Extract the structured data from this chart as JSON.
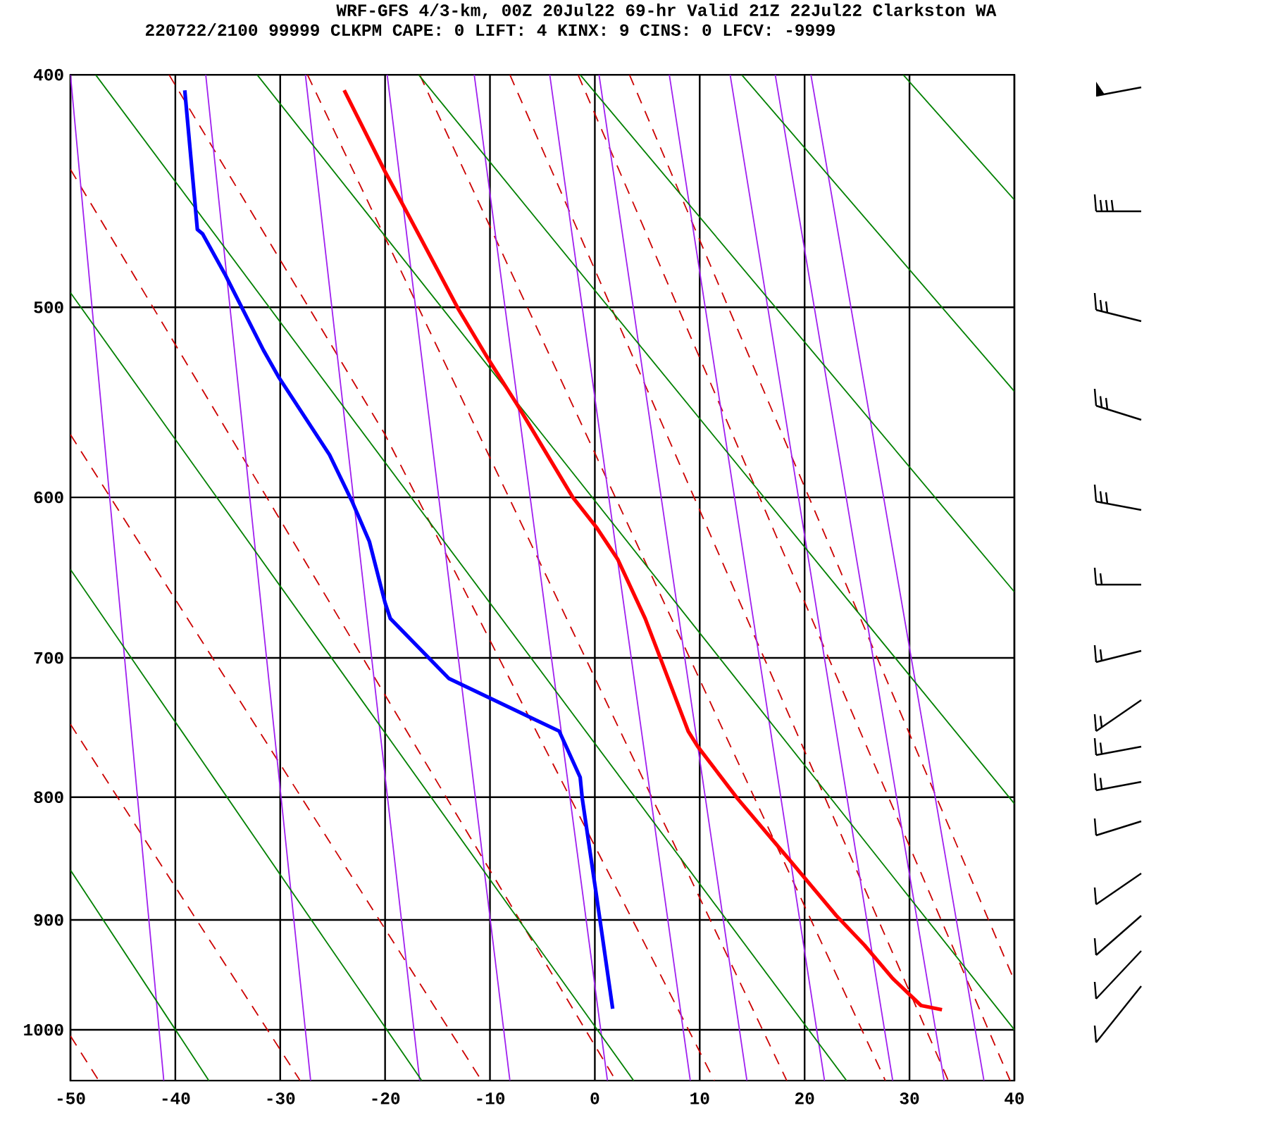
{
  "chart_data": {
    "type": "line",
    "title": "WRF-GFS 4/3-km, 00Z 20Jul22 69-hr Valid 21Z 22Jul22 Clarkston WA",
    "subtitle": "220722/2100 99999  CLKPM   CAPE:     0 LIFT:     4 KINX:     9 CINS:     0 LFCV: -9999",
    "xlim": [
      -50,
      40
    ],
    "xticks": [
      -50,
      -40,
      -30,
      -20,
      -10,
      0,
      10,
      20,
      30,
      40
    ],
    "ylim": [
      1050,
      400
    ],
    "yticks": [
      400,
      500,
      600,
      700,
      800,
      900,
      1000
    ],
    "grid": true,
    "log": "y",
    "series": [
      {
        "color": "#ff0000",
        "x": [
          -23.9,
          -20.0,
          -18.2,
          -13.0,
          -10.1,
          -7.4,
          -2.1,
          0.2,
          2.2,
          4.8,
          6.4,
          8.9,
          9.8,
          13.6,
          18.5,
          23.0,
          25.7,
          28.4,
          31.1,
          33.1
        ],
        "values": [
          406,
          439,
          454,
          501,
          526,
          549,
          600,
          618,
          637,
          674,
          703,
          751,
          762,
          801,
          849,
          896,
          922,
          952,
          977,
          981
        ]
      },
      {
        "color": "#0000ff",
        "x": [
          -39.1,
          -37.9,
          -37.4,
          -35.2,
          -31.6,
          -30.1,
          -25.3,
          -23.1,
          -21.5,
          -20.0,
          -19.5,
          -13.9,
          -3.4,
          -1.4,
          -1.2,
          0.0,
          0.6,
          1.7
        ],
        "values": [
          406,
          464,
          466,
          485,
          521,
          535,
          576,
          603,
          626,
          664,
          674,
          714,
          751,
          785,
          801,
          870,
          907,
          980
        ]
      },
      {
        "color": "#008000",
        "x": [
          -50,
          -36.8
        ],
        "values": [
          858,
          1050
        ]
      },
      {
        "color": "#008000",
        "x": [
          -50,
          -16.5
        ],
        "values": [
          643,
          1050
        ]
      },
      {
        "color": "#008000",
        "x": [
          -50,
          3.7
        ],
        "values": [
          493,
          1050
        ]
      },
      {
        "color": "#008000",
        "x": [
          -47.6,
          24.0
        ],
        "values": [
          400,
          1050
        ]
      },
      {
        "color": "#008000",
        "x": [
          -32.2,
          40
        ],
        "values": [
          400,
          1000
        ]
      },
      {
        "color": "#008000",
        "x": [
          -16.8,
          40
        ],
        "values": [
          400,
          805
        ]
      },
      {
        "color": "#008000",
        "x": [
          -1.4,
          40
        ],
        "values": [
          400,
          657
        ]
      },
      {
        "color": "#008000",
        "x": [
          14.0,
          40
        ],
        "values": [
          400,
          542
        ]
      },
      {
        "color": "#008000",
        "x": [
          29.4,
          40
        ],
        "values": [
          400,
          451
        ]
      },
      {
        "color": "#a020f0",
        "x": [
          -50,
          -41.1
        ],
        "values": [
          400,
          1050
        ]
      },
      {
        "color": "#a020f0",
        "x": [
          -37.1,
          -27.1
        ],
        "values": [
          400,
          1050
        ]
      },
      {
        "color": "#a020f0",
        "x": [
          -27.6,
          -16.7
        ],
        "values": [
          400,
          1050
        ]
      },
      {
        "color": "#a020f0",
        "x": [
          -19.8,
          -8.1
        ],
        "values": [
          400,
          1050
        ]
      },
      {
        "color": "#a020f0",
        "x": [
          -11.5,
          1.2
        ],
        "values": [
          400,
          1050
        ]
      },
      {
        "color": "#a020f0",
        "x": [
          -4.3,
          9.1
        ],
        "values": [
          400,
          1050
        ]
      },
      {
        "color": "#a020f0",
        "x": [
          0.4,
          14.5
        ],
        "values": [
          400,
          1050
        ]
      },
      {
        "color": "#a020f0",
        "x": [
          7.1,
          21.9
        ],
        "values": [
          400,
          1050
        ]
      },
      {
        "color": "#a020f0",
        "x": [
          12.9,
          28.4
        ],
        "values": [
          400,
          1050
        ]
      },
      {
        "color": "#a020f0",
        "x": [
          17.2,
          33.3
        ],
        "values": [
          400,
          1050
        ]
      },
      {
        "color": "#a020f0",
        "x": [
          20.6,
          37.1
        ],
        "values": [
          400,
          1050
        ]
      },
      {
        "color": "#cc0000",
        "line_style": "dashed",
        "x": [
          -50,
          -47.3
        ],
        "values": [
          1006,
          1050
        ]
      },
      {
        "color": "#cc0000",
        "line_style": "dashed",
        "x": [
          -50,
          -28.1
        ],
        "values": [
          746,
          1050
        ]
      },
      {
        "color": "#cc0000",
        "line_style": "dashed",
        "x": [
          -50,
          -10.8
        ],
        "values": [
          565,
          1050
        ]
      },
      {
        "color": "#cc0000",
        "line_style": "dashed",
        "x": [
          -50,
          2.0
        ],
        "values": [
          438,
          1050
        ]
      },
      {
        "color": "#cc0000",
        "line_style": "dashed",
        "x": [
          -40.6,
          -20.0,
          11.4
        ],
        "values": [
          400,
          565,
          1050
        ]
      },
      {
        "color": "#cc0000",
        "line_style": "dashed",
        "x": [
          -27.4,
          18.3
        ],
        "values": [
          400,
          1050
        ]
      },
      {
        "color": "#cc0000",
        "line_style": "dashed",
        "x": [
          -16.7,
          27.7
        ],
        "values": [
          400,
          1050
        ]
      },
      {
        "color": "#cc0000",
        "line_style": "dashed",
        "x": [
          -8.1,
          33.7
        ],
        "values": [
          400,
          1050
        ]
      },
      {
        "color": "#cc0000",
        "line_style": "dashed",
        "x": [
          -1.6,
          39.6
        ],
        "values": [
          400,
          1050
        ]
      },
      {
        "color": "#cc0000",
        "line_style": "dashed",
        "x": [
          3.3,
          40
        ],
        "values": [
          400,
          954
        ]
      }
    ]
  }
}
